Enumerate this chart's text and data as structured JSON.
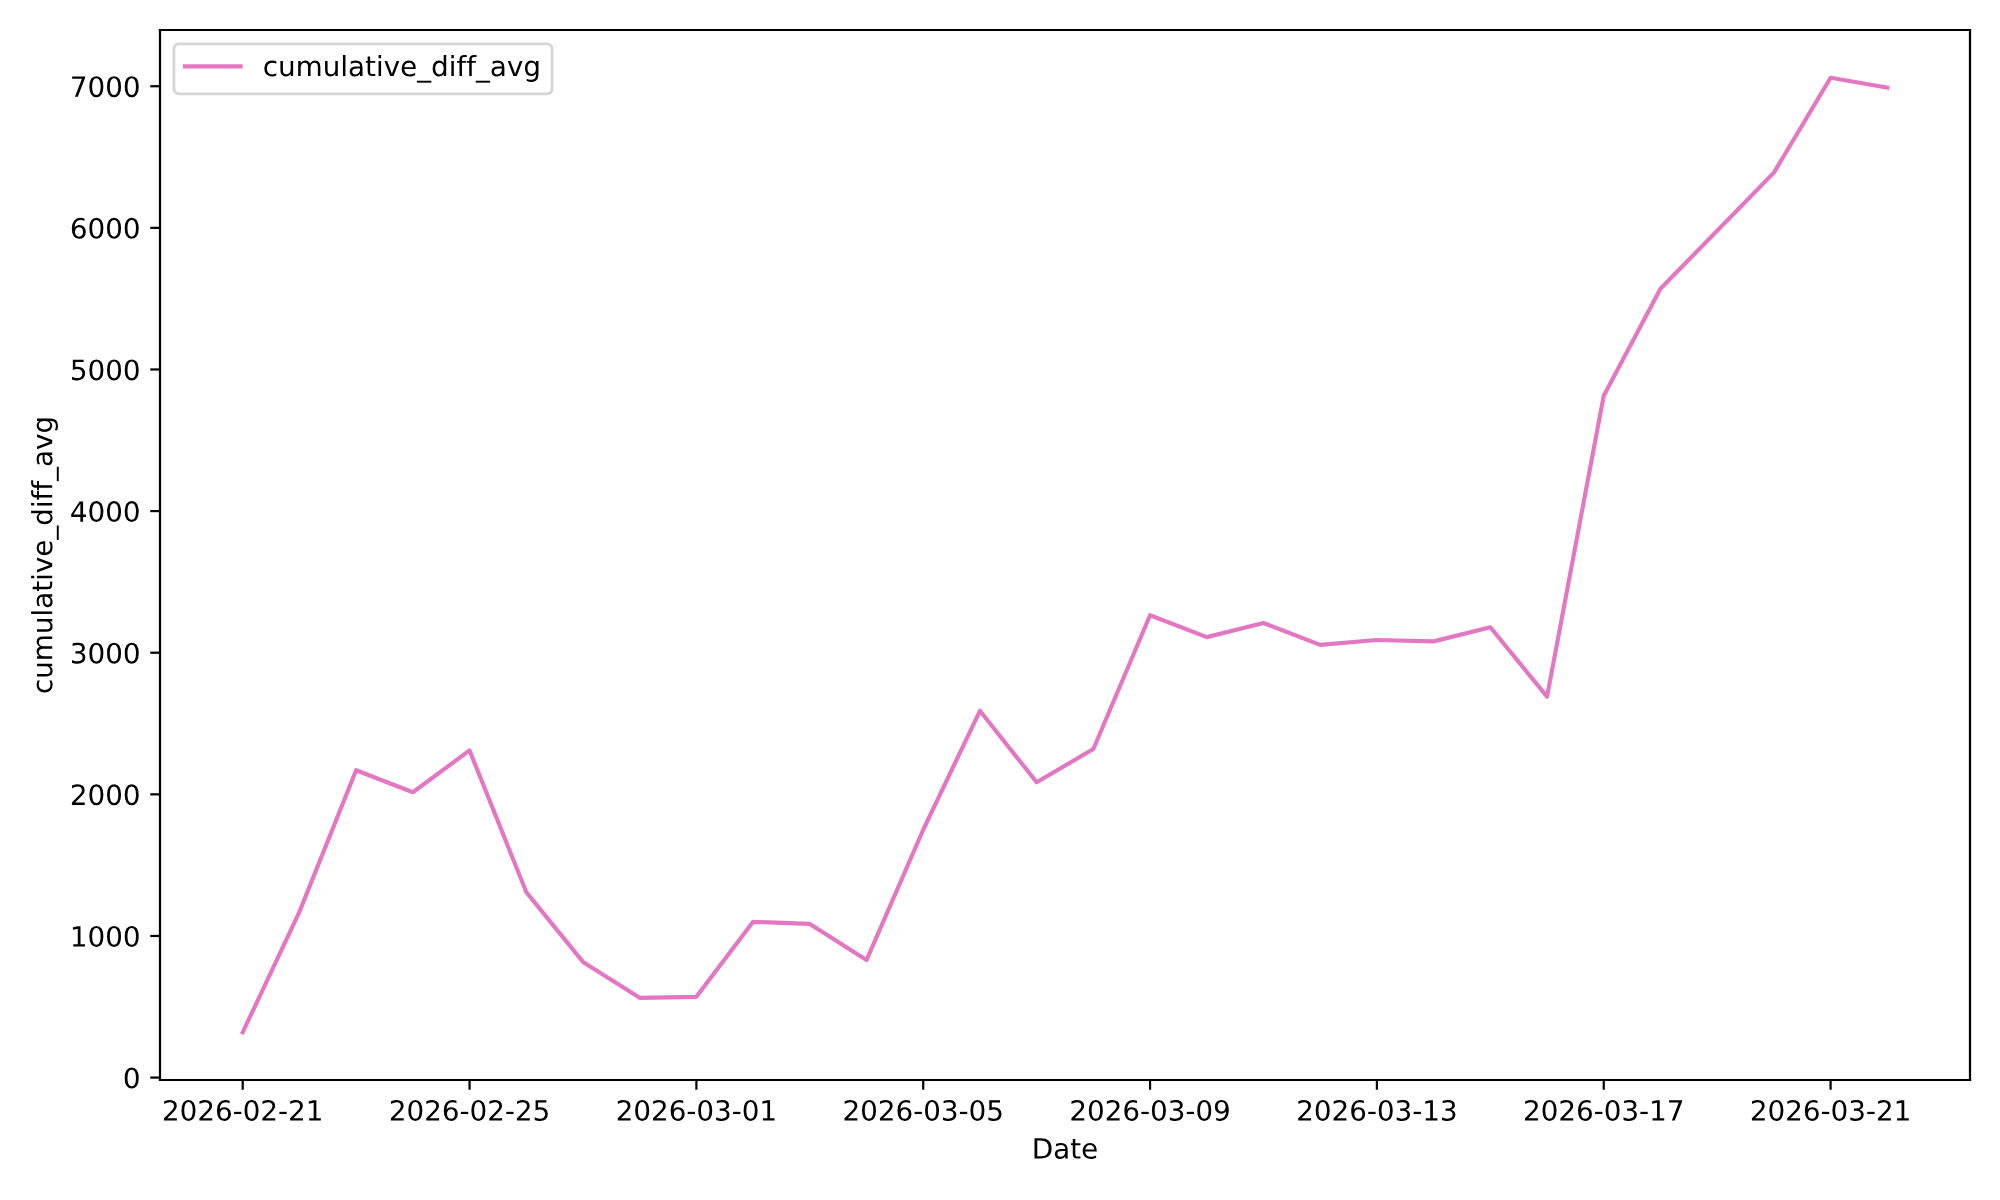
{
  "chart_data": {
    "type": "line",
    "xlabel": "Date",
    "ylabel": "cumulative_diff_avg",
    "x": [
      "2026-02-21",
      "2026-02-22",
      "2026-02-23",
      "2026-02-24",
      "2026-02-25",
      "2026-02-26",
      "2026-02-27",
      "2026-02-28",
      "2026-03-01",
      "2026-03-02",
      "2026-03-03",
      "2026-03-04",
      "2026-03-05",
      "2026-03-06",
      "2026-03-07",
      "2026-03-08",
      "2026-03-09",
      "2026-03-10",
      "2026-03-11",
      "2026-03-12",
      "2026-03-13",
      "2026-03-14",
      "2026-03-15",
      "2026-03-16",
      "2026-03-17",
      "2026-03-18",
      "2026-03-19",
      "2026-03-20",
      "2026-03-21",
      "2026-03-22"
    ],
    "series": [
      {
        "name": "cumulative_diff_avg",
        "color": "#e377c2",
        "values": [
          320,
          1170,
          2170,
          2015,
          2310,
          1310,
          817,
          563,
          570,
          1100,
          1085,
          830,
          1750,
          2590,
          2085,
          2320,
          3265,
          3110,
          3210,
          3055,
          3090,
          3080,
          3180,
          2690,
          4815,
          5570,
          5980,
          6390,
          7060,
          6990
        ]
      }
    ],
    "xlim": [
      "2026-02-19T13:00",
      "2026-03-23T11:00"
    ],
    "xticks": [
      {
        "value": "2026-02-21",
        "label": "2026-02-21"
      },
      {
        "value": "2026-02-25",
        "label": "2026-02-25"
      },
      {
        "value": "2026-03-01",
        "label": "2026-03-01"
      },
      {
        "value": "2026-03-05",
        "label": "2026-03-05"
      },
      {
        "value": "2026-03-09",
        "label": "2026-03-09"
      },
      {
        "value": "2026-03-13",
        "label": "2026-03-13"
      },
      {
        "value": "2026-03-17",
        "label": "2026-03-17"
      },
      {
        "value": "2026-03-21",
        "label": "2026-03-21"
      }
    ],
    "ylim": [
      -17,
      7397
    ],
    "yticks": [
      0,
      1000,
      2000,
      3000,
      4000,
      5000,
      6000,
      7000
    ],
    "grid": false,
    "legend": "top left",
    "marker": "none",
    "line_style": "solid"
  }
}
